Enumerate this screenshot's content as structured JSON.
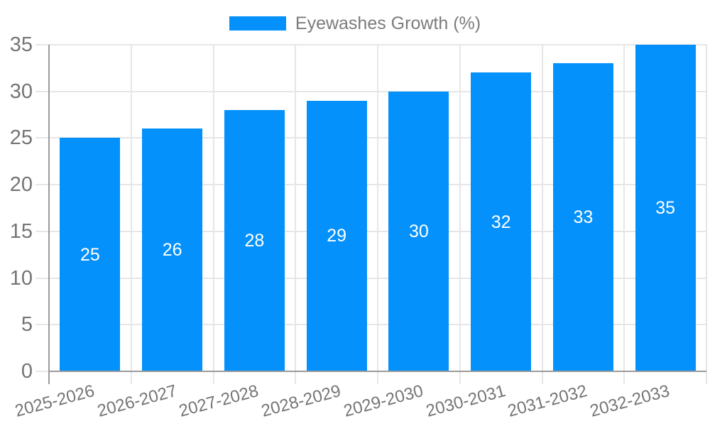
{
  "chart_data": {
    "type": "bar",
    "title": "",
    "legend": {
      "label": "Eyewashes Growth (%)",
      "position": "top"
    },
    "categories": [
      "2025-2026",
      "2026-2027",
      "2027-2028",
      "2028-2029",
      "2029-2030",
      "2030-2031",
      "2031-2032",
      "2032-2033"
    ],
    "series": [
      {
        "name": "Eyewashes Growth (%)",
        "values": [
          25,
          26,
          28,
          29,
          30,
          32,
          33,
          35
        ]
      }
    ],
    "xlabel": "",
    "ylabel": "",
    "ylim": [
      0,
      35
    ],
    "yticks": [
      0,
      5,
      10,
      15,
      20,
      25,
      30,
      35
    ],
    "grid": true,
    "value_labels_position": "inside-center",
    "colors": {
      "bar": "#0591fb",
      "grid": "#e6e6e6",
      "axis": "#9a9a9a",
      "tick_text": "#757575",
      "value_label_text": "#ffffff"
    }
  }
}
